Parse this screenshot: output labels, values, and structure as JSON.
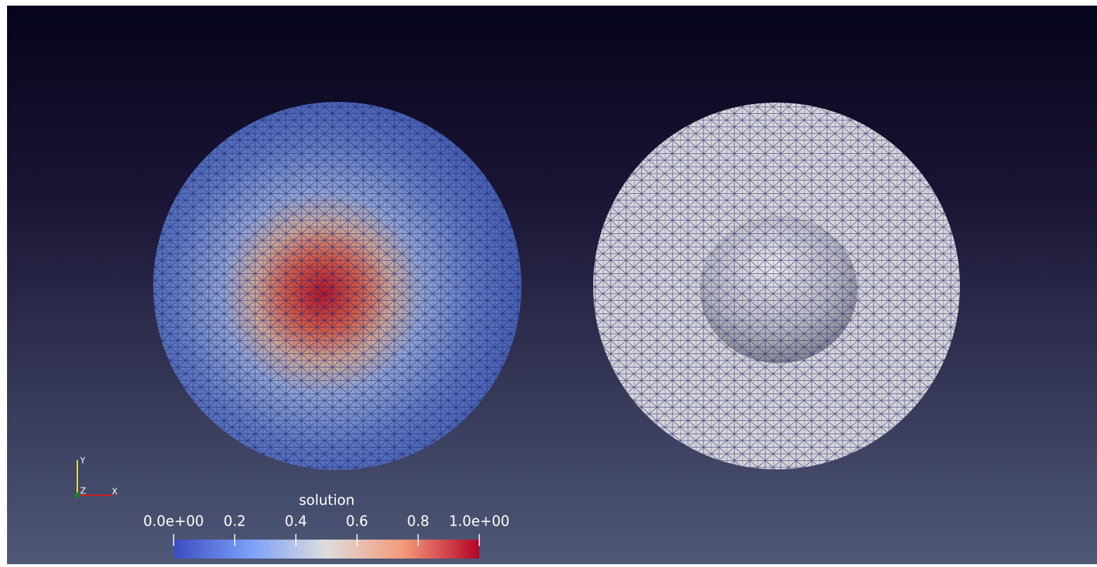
{
  "colorbar": {
    "title": "solution",
    "range": [
      0,
      1
    ],
    "ticks": [
      {
        "value": 0,
        "label": "0.0e+00"
      },
      0.2,
      0.4,
      0.6,
      0.8,
      {
        "value": 1,
        "label": "1.0e+00"
      }
    ]
  },
  "axes": {
    "y": "Y",
    "z": "Z",
    "x": "X"
  }
}
